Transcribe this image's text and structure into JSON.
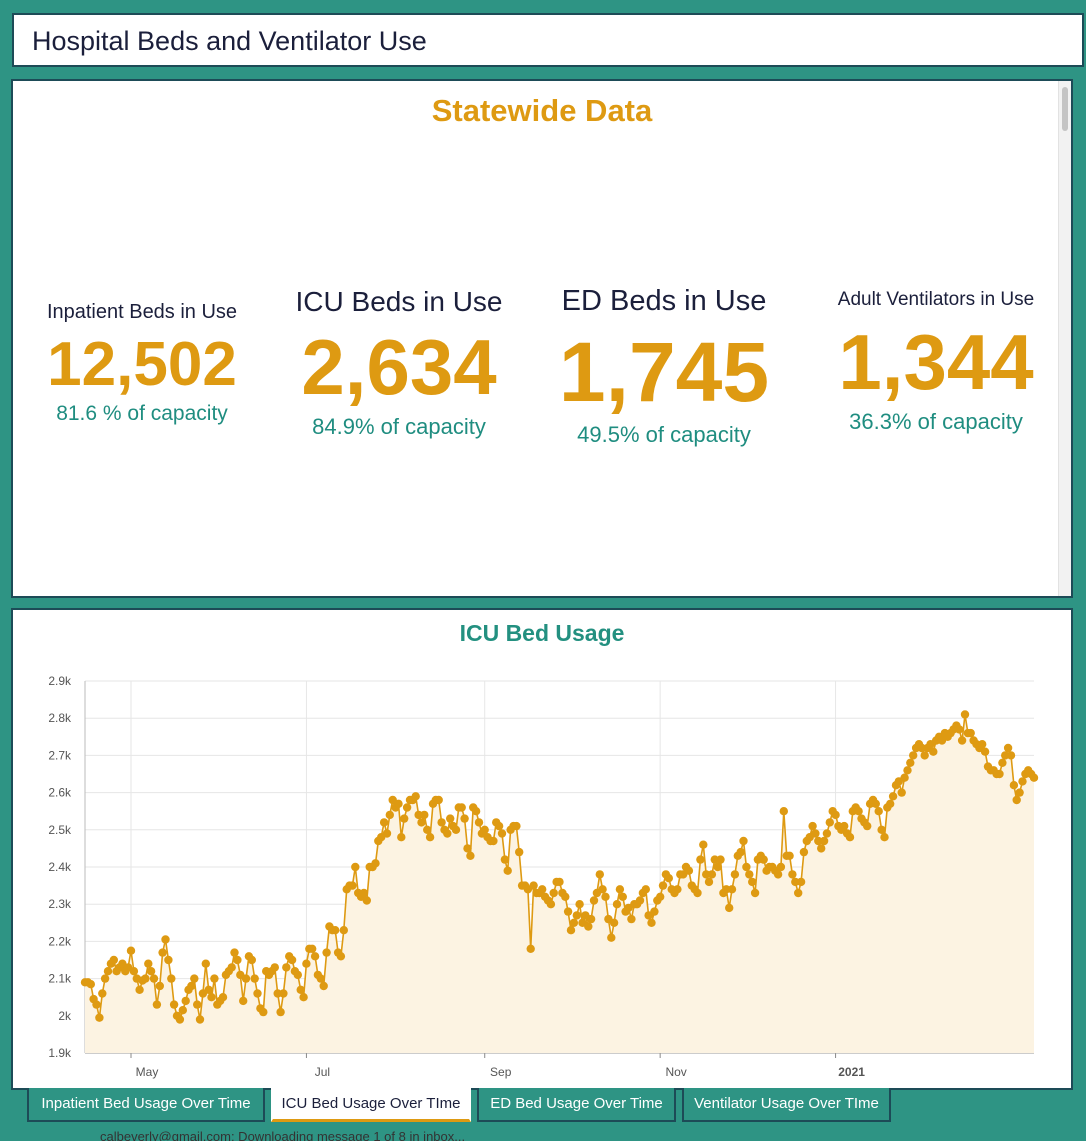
{
  "window": {
    "title": "Hospital Beds and Ventilator Use"
  },
  "stats": {
    "heading": "Statewide Data",
    "items": [
      {
        "label": "Inpatient Beds in Use",
        "value": "12,502",
        "capacity": "81.6 % of capacity"
      },
      {
        "label": "ICU Beds in Use",
        "value": "2,634",
        "capacity": "84.9% of capacity"
      },
      {
        "label": "ED Beds in Use",
        "value": "1,745",
        "capacity": "49.5% of capacity"
      },
      {
        "label": "Adult Ventilators in Use",
        "value": "1,344",
        "capacity": "36.3% of capacity"
      }
    ]
  },
  "tabs": [
    {
      "label": "Inpatient Bed Usage Over Time",
      "active": false
    },
    {
      "label": "ICU Bed Usage Over TIme",
      "active": true
    },
    {
      "label": "ED Bed Usage Over Time",
      "active": false
    },
    {
      "label": "Ventilator Usage Over TIme",
      "active": false
    }
  ],
  "status_text": "calbeverly@gmail.com: Downloading message 1 of 8 in inbox...",
  "colors": {
    "accent": "#de9a12",
    "teal": "#2e9484",
    "navy": "#1b1f3b",
    "area_fill": "#fcf3e2"
  },
  "chart_data": {
    "type": "line",
    "title": "ICU Bed Usage",
    "xlabel": "",
    "ylabel": "",
    "x_start": "2020-04-15",
    "x_ticks": [
      {
        "label": "May",
        "date": "2020-05-01",
        "bold": false
      },
      {
        "label": "Jul",
        "date": "2020-07-01",
        "bold": false
      },
      {
        "label": "Sep",
        "date": "2020-09-01",
        "bold": false
      },
      {
        "label": "Nov",
        "date": "2020-11-01",
        "bold": false
      },
      {
        "label": "2021",
        "date": "2021-01-01",
        "bold": true
      }
    ],
    "y_ticks": [
      "1.9k",
      "2k",
      "2.1k",
      "2.2k",
      "2.3k",
      "2.4k",
      "2.5k",
      "2.6k",
      "2.7k",
      "2.8k",
      "2.9k"
    ],
    "ylim": [
      1900,
      2900
    ],
    "grid": true,
    "series": [
      {
        "color": "#de9a12",
        "values": [
          2090,
          2090,
          2085,
          2045,
          2030,
          1995,
          2060,
          2100,
          2120,
          2140,
          2150,
          2120,
          2130,
          2140,
          2120,
          2130,
          2175,
          2120,
          2100,
          2070,
          2095,
          2100,
          2140,
          2120,
          2100,
          2030,
          2080,
          2170,
          2205,
          2150,
          2100,
          2030,
          2000,
          1990,
          2015,
          2040,
          2070,
          2080,
          2100,
          2030,
          1990,
          2060,
          2140,
          2070,
          2050,
          2100,
          2030,
          2040,
          2050,
          2110,
          2120,
          2130,
          2170,
          2150,
          2110,
          2040,
          2100,
          2160,
          2150,
          2100,
          2060,
          2020,
          2010,
          2120,
          2110,
          2120,
          2130,
          2060,
          2010,
          2060,
          2130,
          2160,
          2150,
          2120,
          2110,
          2070,
          2050,
          2140,
          2180,
          2180,
          2160,
          2110,
          2100,
          2080,
          2170,
          2240,
          2230,
          2230,
          2170,
          2160,
          2230,
          2340,
          2350,
          2350,
          2400,
          2330,
          2320,
          2330,
          2310,
          2400,
          2400,
          2410,
          2470,
          2480,
          2520,
          2490,
          2540,
          2580,
          2560,
          2570,
          2480,
          2530,
          2560,
          2580,
          2580,
          2590,
          2540,
          2520,
          2540,
          2500,
          2480,
          2570,
          2580,
          2580,
          2520,
          2500,
          2490,
          2530,
          2510,
          2500,
          2560,
          2560,
          2530,
          2450,
          2430,
          2560,
          2550,
          2520,
          2490,
          2500,
          2480,
          2470,
          2470,
          2520,
          2510,
          2490,
          2420,
          2390,
          2500,
          2510,
          2510,
          2440,
          2350,
          2350,
          2340,
          2180,
          2350,
          2330,
          2330,
          2340,
          2320,
          2310,
          2300,
          2330,
          2360,
          2360,
          2330,
          2320,
          2280,
          2230,
          2250,
          2270,
          2300,
          2250,
          2270,
          2240,
          2260,
          2310,
          2330,
          2380,
          2340,
          2320,
          2260,
          2210,
          2250,
          2300,
          2340,
          2320,
          2280,
          2290,
          2260,
          2300,
          2300,
          2310,
          2330,
          2340,
          2270,
          2250,
          2280,
          2310,
          2320,
          2350,
          2380,
          2370,
          2340,
          2330,
          2340,
          2380,
          2380,
          2400,
          2390,
          2350,
          2340,
          2330,
          2420,
          2460,
          2380,
          2360,
          2380,
          2420,
          2400,
          2420,
          2330,
          2340,
          2290,
          2340,
          2380,
          2430,
          2440,
          2470,
          2400,
          2380,
          2360,
          2330,
          2420,
          2430,
          2420,
          2390,
          2400,
          2400,
          2390,
          2380,
          2400,
          2550,
          2430,
          2430,
          2380,
          2360,
          2330,
          2360,
          2440,
          2470,
          2480,
          2510,
          2490,
          2470,
          2450,
          2470,
          2490,
          2520,
          2550,
          2540,
          2510,
          2500,
          2510,
          2490,
          2480,
          2550,
          2560,
          2550,
          2530,
          2520,
          2510,
          2570,
          2580,
          2570,
          2550,
          2500,
          2480,
          2560,
          2570,
          2590,
          2620,
          2630,
          2600,
          2640,
          2660,
          2680,
          2700,
          2720,
          2730,
          2720,
          2700,
          2720,
          2730,
          2710,
          2740,
          2750,
          2740,
          2760,
          2750,
          2760,
          2770,
          2780,
          2770,
          2740,
          2810,
          2760,
          2760,
          2740,
          2730,
          2720,
          2730,
          2710,
          2670,
          2660,
          2660,
          2650,
          2650,
          2680,
          2700,
          2720,
          2700,
          2620,
          2580,
          2600,
          2630,
          2650,
          2660,
          2650,
          2640
        ]
      }
    ]
  }
}
